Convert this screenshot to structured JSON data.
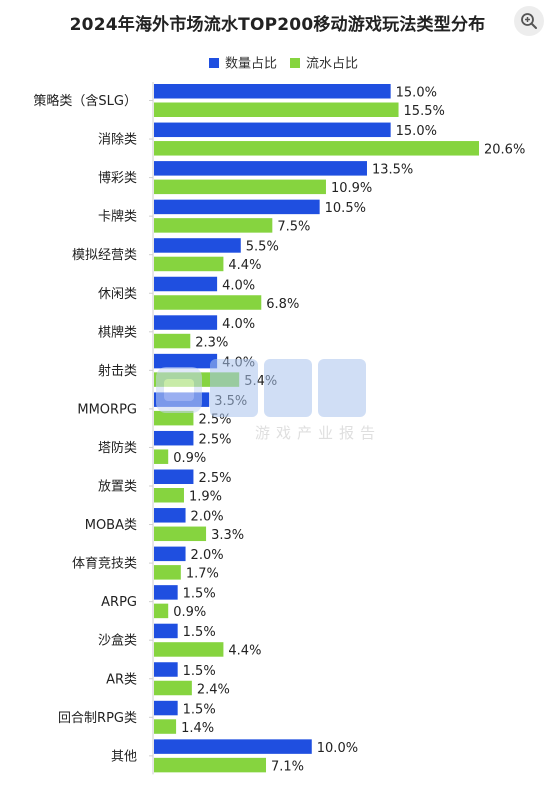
{
  "chart_data": {
    "type": "bar",
    "orientation": "horizontal",
    "title": "2024年海外市场流水TOP200移动游戏玩法类型分布",
    "categories": [
      "策略类（含SLG）",
      "消除类",
      "博彩类",
      "卡牌类",
      "模拟经营类",
      "休闲类",
      "棋牌类",
      "射击类",
      "MMORPG",
      "塔防类",
      "放置类",
      "MOBA类",
      "体育竞技类",
      "ARPG",
      "沙盒类",
      "AR类",
      "回合制RPG类",
      "其他"
    ],
    "series": [
      {
        "name": "数量占比",
        "color": "#1f4fe0",
        "values": [
          15.0,
          15.0,
          13.5,
          10.5,
          5.5,
          4.0,
          4.0,
          4.0,
          3.5,
          2.5,
          2.5,
          2.0,
          2.0,
          1.5,
          1.5,
          1.5,
          1.5,
          10.0
        ],
        "labels": [
          "15.0%",
          "15.0%",
          "13.5%",
          "10.5%",
          "5.5%",
          "4.0%",
          "4.0%",
          "4.0%",
          "3.5%",
          "2.5%",
          "2.5%",
          "2.0%",
          "2.0%",
          "1.5%",
          "1.5%",
          "1.5%",
          "1.5%",
          "10.0%"
        ]
      },
      {
        "name": "流水占比",
        "color": "#86d43f",
        "values": [
          15.5,
          20.6,
          10.9,
          7.5,
          4.4,
          6.8,
          2.3,
          5.4,
          2.5,
          0.9,
          1.9,
          3.3,
          1.7,
          0.9,
          4.4,
          2.4,
          1.4,
          7.1
        ],
        "labels": [
          "15.5%",
          "20.6%",
          "10.9%",
          "7.5%",
          "4.4%",
          "6.8%",
          "2.3%",
          "5.4%",
          "2.5%",
          "0.9%",
          "1.9%",
          "3.3%",
          "1.7%",
          "0.9%",
          "4.4%",
          "2.4%",
          "1.4%",
          "7.1%"
        ]
      }
    ],
    "xlim": [
      0,
      20.6
    ],
    "grid": false,
    "legend_placement": "top-center"
  },
  "watermark": {
    "text": "游戏产业报告"
  },
  "icons": {
    "zoom": "zoom-in-icon"
  }
}
